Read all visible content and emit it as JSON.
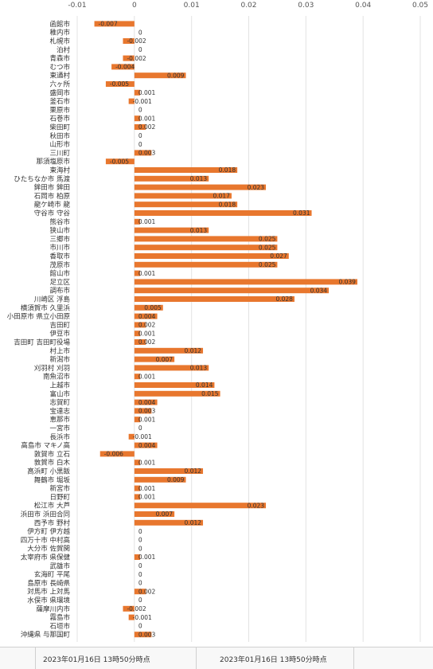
{
  "chart_data": {
    "type": "bar",
    "orientation": "horizontal",
    "title": "",
    "xlabel": "",
    "ylabel": "",
    "x_ticks": [
      "-0.01",
      "0",
      "0.01",
      "0.02",
      "0.03",
      "0.04",
      "0.05"
    ],
    "xlim": [
      -0.01,
      0.05
    ],
    "grid": true,
    "bar_color": "#E8772E",
    "categories": [
      "函館市",
      "稚内市",
      "札幌市",
      "泊村",
      "青森市",
      "むつ市",
      "東通村",
      "六ヶ所",
      "盛岡市",
      "釜石市",
      "栗原市",
      "石巻市",
      "柴田町",
      "秋田市",
      "山形市",
      "三川町",
      "那須塩原市",
      "東海村",
      "ひたちなか市 馬渡",
      "鉾田市 鉾田",
      "石岡市 柏原",
      "龍ケ崎市 龍",
      "守谷市 守谷",
      "熊谷市",
      "狭山市",
      "三郷市",
      "市川市",
      "香取市",
      "茂原市",
      "館山市",
      "足立区",
      "調布市",
      "川崎区 浮島",
      "横須賀市 久里浜",
      "小田原市 県立小田原",
      "吉田町",
      "伊豆市",
      "吉田町 吉田町役場",
      "村上市",
      "新潟市",
      "刈羽村 刈羽",
      "南魚沼市",
      "上越市",
      "富山市",
      "志賀町",
      "宝達志",
      "恵那市",
      "一宮市",
      "長浜市",
      "高島市 マキノ高",
      "敦賀市 立石",
      "敦賀市 白木",
      "高浜町 小黒飯",
      "舞鶴市 堀坂",
      "新宮市",
      "日野町",
      "松江市 大芦",
      "浜田市 浜田合同",
      "西予市 野村",
      "伊方町 伊方越",
      "四万十市 中村高",
      "大分市 佐賀関",
      "太宰府市 県保健",
      "武雄市",
      "玄海町 平尾",
      "島原市 長崎県",
      "対馬市 上対馬",
      "水俣市 県環境",
      "薩摩川内市",
      "霧島市",
      "石垣市",
      "沖縄県 与那国町"
    ],
    "values": [
      -0.007,
      0,
      -0.002,
      0,
      -0.002,
      -0.004,
      0.009,
      -0.005,
      0.001,
      -0.001,
      0,
      0.001,
      0.002,
      0,
      0,
      0.003,
      -0.005,
      0.018,
      0.013,
      0.023,
      0.017,
      0.018,
      0.031,
      0.001,
      0.013,
      0.025,
      0.025,
      0.027,
      0.025,
      0.001,
      0.039,
      0.034,
      0.028,
      0.005,
      0.004,
      0.002,
      0.001,
      0.002,
      0.012,
      0.007,
      0.013,
      0.001,
      0.014,
      0.015,
      0.004,
      0.003,
      0.001,
      0,
      -0.001,
      0.004,
      -0.006,
      0.001,
      0.012,
      0.009,
      0.001,
      0.001,
      0.023,
      0.007,
      0.012,
      0,
      0,
      0,
      0.001,
      0,
      0,
      0,
      0.002,
      0,
      -0.002,
      -0.001,
      0,
      0.003
    ],
    "data_labels": [
      "-0.007",
      "0",
      "-0.002",
      "0",
      "-0.002",
      "-0.004",
      "0.009",
      "-0.005",
      "0.001",
      "-0.001",
      "0",
      "0.001",
      "0.002",
      "0",
      "0",
      "0.003",
      "-0.005",
      "0.018",
      "0.013",
      "0.023",
      "0.017",
      "0.018",
      "0.031",
      "0.001",
      "0.013",
      "0.025",
      "0.025",
      "0.027",
      "0.025",
      "0.001",
      "0.039",
      "0.034",
      "0.028",
      "0.005",
      "0.004",
      "0.002",
      "0.001",
      "0.002",
      "0.012",
      "0.007",
      "0.013",
      "0.001",
      "0.014",
      "0.015",
      "0.004",
      "0.003",
      "0.001",
      "0",
      "-0.001",
      "0.004",
      "-0.006",
      "0.001",
      "0.012",
      "0.009",
      "0.001",
      "0.001",
      "0.023",
      "0.007",
      "0.012",
      "0",
      "0",
      "0",
      "0.001",
      "0",
      "0",
      "0",
      "0.002",
      "0",
      "-0.002",
      "-0.001",
      "0",
      "0.003"
    ]
  },
  "footer": {
    "timestamp_left": "2023年01月16日 13時50分時点",
    "timestamp_right": "2023年01月16日 13時50分時点"
  }
}
